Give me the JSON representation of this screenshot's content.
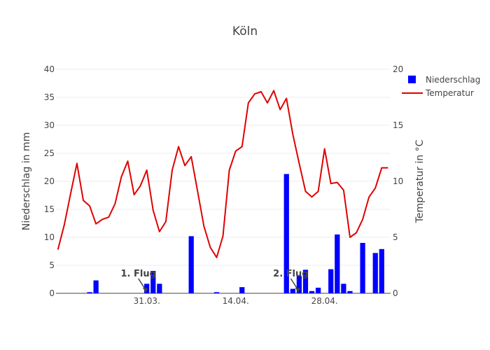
{
  "chart_data": {
    "type": "bar+line",
    "title": "Köln",
    "y_left_label": "Niederschlag in mm",
    "y_right_label": "Temperatur in °C",
    "ylim_left": [
      0,
      40
    ],
    "ylim_right": [
      0,
      20
    ],
    "yticks_left": [
      "0",
      "5",
      "10",
      "15",
      "20",
      "25",
      "30",
      "35",
      "40"
    ],
    "yticks_right": [
      "0",
      "5",
      "10",
      "15",
      "20"
    ],
    "x_tick_labels": [
      {
        "day": 14,
        "label": "31.03."
      },
      {
        "day": 28,
        "label": "14.04."
      },
      {
        "day": 42,
        "label": "28.04."
      }
    ],
    "x_range_days": [
      -0.3,
      52.4
    ],
    "grid": true,
    "legend_position": "top-right",
    "colors": {
      "niederschlag": "#0000ff",
      "temperatur": "#e00000"
    },
    "series": [
      {
        "name": "Niederschlag",
        "kind": "bar",
        "axis": "left",
        "days": [
          5,
          6,
          14,
          15,
          16,
          21,
          25,
          29,
          36,
          37,
          38,
          39,
          40,
          41,
          44,
          45,
          46,
          48
        ],
        "values": [
          0.2,
          2.3,
          1.7,
          4.0,
          1.7,
          10.2,
          0.2,
          1.1,
          21.3,
          0.8,
          3.1,
          4.2,
          0.4,
          1.0,
          10.5,
          1.7,
          0.4,
          9.0
        ],
        "extra_days": [
          43,
          50,
          51
        ],
        "extra_values": [
          4.3,
          7.2,
          7.9
        ]
      },
      {
        "name": "Temperatur",
        "kind": "line",
        "axis": "right",
        "days": [
          0,
          1,
          2,
          3,
          4,
          5,
          6,
          7,
          8,
          9,
          10,
          11,
          12,
          13,
          14,
          15,
          16,
          17,
          18,
          19,
          20,
          21,
          22,
          23,
          24,
          25,
          26,
          27,
          28,
          29,
          30,
          31,
          32,
          33,
          34,
          35,
          36,
          37,
          38,
          39,
          40,
          41,
          42,
          43,
          44,
          45,
          46,
          47,
          48,
          49,
          50,
          51,
          52
        ],
        "values": [
          3.9,
          6.1,
          8.9,
          11.6,
          8.3,
          7.8,
          6.2,
          6.6,
          6.8,
          8.0,
          10.4,
          11.8,
          8.8,
          9.6,
          11.0,
          7.4,
          5.5,
          6.4,
          11.0,
          13.1,
          11.4,
          12.2,
          9.1,
          6.0,
          4.1,
          3.2,
          5.1,
          11.0,
          12.7,
          13.1,
          17.0,
          17.8,
          18.0,
          17.0,
          18.1,
          16.4,
          17.4,
          14.2,
          11.6,
          9.1,
          8.6,
          9.1,
          12.9,
          9.8,
          9.9,
          9.2,
          5.0,
          5.4,
          6.6,
          8.6,
          9.4,
          11.2,
          11.2
        ]
      }
    ],
    "annotations": [
      {
        "text": "1. Flug",
        "day": 14,
        "value": 0
      },
      {
        "text": "2. Flug",
        "day": 38,
        "value": 0
      }
    ]
  }
}
